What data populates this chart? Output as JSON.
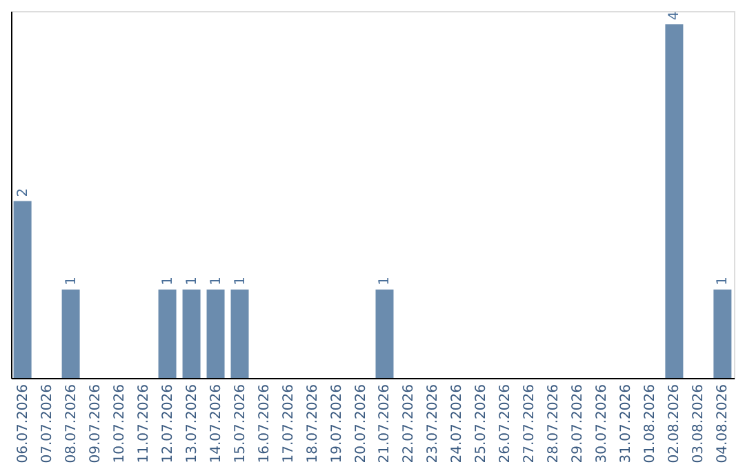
{
  "chart_data": {
    "type": "bar",
    "categories": [
      "06.07.2026",
      "07.07.2026",
      "08.07.2026",
      "09.07.2026",
      "10.07.2026",
      "11.07.2026",
      "12.07.2026",
      "13.07.2026",
      "14.07.2026",
      "15.07.2026",
      "16.07.2026",
      "17.07.2026",
      "18.07.2026",
      "19.07.2026",
      "20.07.2026",
      "21.07.2026",
      "22.07.2026",
      "23.07.2026",
      "24.07.2026",
      "25.07.2026",
      "26.07.2026",
      "27.07.2026",
      "28.07.2026",
      "29.07.2026",
      "30.07.2026",
      "31.07.2026",
      "01.08.2026",
      "02.08.2026",
      "03.08.2026",
      "04.08.2026"
    ],
    "values": [
      2,
      0,
      1,
      0,
      0,
      0,
      1,
      1,
      1,
      1,
      0,
      0,
      0,
      0,
      0,
      1,
      0,
      0,
      0,
      0,
      0,
      0,
      0,
      0,
      0,
      0,
      0,
      4,
      0,
      1
    ],
    "value_labels": [
      "2",
      null,
      "1",
      null,
      null,
      null,
      "1",
      "1",
      "1",
      "1",
      null,
      null,
      null,
      null,
      null,
      "1",
      null,
      null,
      null,
      null,
      null,
      null,
      null,
      null,
      null,
      null,
      null,
      "4",
      null,
      "1"
    ],
    "color": "#6b8cae",
    "ylim": [
      0,
      4.15
    ],
    "tick_labels": "x",
    "grid": false
  }
}
